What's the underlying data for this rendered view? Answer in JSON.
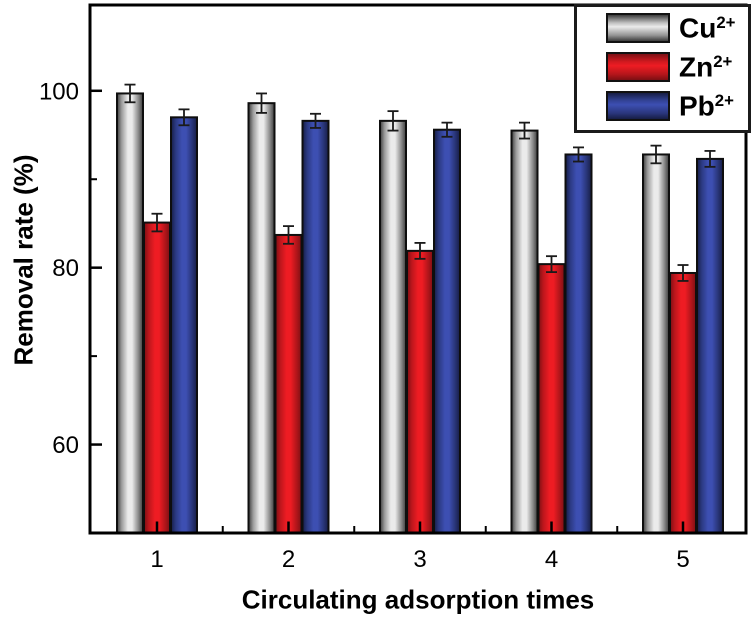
{
  "chart_data": {
    "type": "bar",
    "title": "",
    "xlabel": "Circulating adsorption times",
    "ylabel": "Removal rate (%)",
    "categories": [
      "1",
      "2",
      "3",
      "4",
      "5"
    ],
    "series": [
      {
        "name": "Cu2+",
        "label_base": "Cu",
        "label_sup": "2+",
        "color_center": "#ebebeb",
        "color_edge": "#3c3c3c",
        "values": [
          99.7,
          98.6,
          96.6,
          95.5,
          92.8
        ],
        "errors": [
          1.0,
          1.1,
          1.1,
          0.9,
          1.0
        ]
      },
      {
        "name": "Zn2+",
        "label_base": "Zn",
        "label_sup": "2+",
        "color_center": "#ee1c23",
        "color_edge": "#7c0f13",
        "values": [
          85.1,
          83.7,
          81.9,
          80.4,
          79.4
        ],
        "errors": [
          1.0,
          1.0,
          0.9,
          0.9,
          0.9
        ]
      },
      {
        "name": "Pb2+",
        "label_base": "Pb",
        "label_sup": "2+",
        "color_center": "#3d4fb2",
        "color_edge": "#161d45",
        "values": [
          97.0,
          96.6,
          95.6,
          92.8,
          92.3
        ],
        "errors": [
          0.9,
          0.8,
          0.8,
          0.8,
          0.9
        ]
      }
    ],
    "ylim": [
      50,
      109.7
    ],
    "y_major_ticks": [
      60,
      80,
      100
    ],
    "y_minor_ticks": [
      70,
      90
    ],
    "grid": false,
    "legend_position": "top-right",
    "error_bars": true,
    "axis_color": "#000000"
  }
}
